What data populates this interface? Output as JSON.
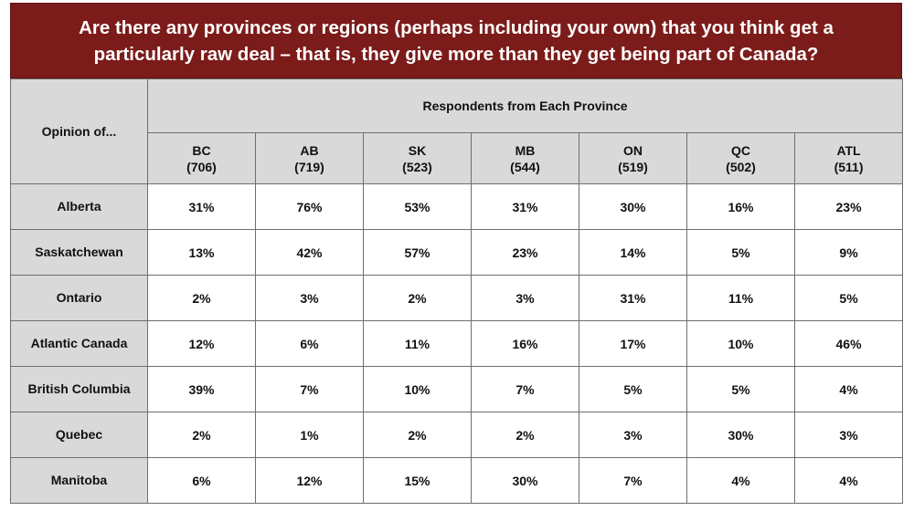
{
  "title": "Are there any provinces or regions (perhaps including your own) that you think get a particularly raw deal – that is, they give more than they get being part of Canada?",
  "table": {
    "corner_label": "Opinion of...",
    "group_header": "Respondents from Each Province",
    "columns": [
      {
        "code": "BC",
        "n": "(706)"
      },
      {
        "code": "AB",
        "n": "(719)"
      },
      {
        "code": "SK",
        "n": "(523)"
      },
      {
        "code": "MB",
        "n": "(544)"
      },
      {
        "code": "ON",
        "n": "(519)"
      },
      {
        "code": "QC",
        "n": "(502)"
      },
      {
        "code": "ATL",
        "n": "(511)"
      }
    ],
    "rows": [
      {
        "label": "Alberta",
        "cells": [
          "31%",
          "76%",
          "53%",
          "31%",
          "30%",
          "16%",
          "23%"
        ]
      },
      {
        "label": "Saskatchewan",
        "cells": [
          "13%",
          "42%",
          "57%",
          "23%",
          "14%",
          "5%",
          "9%"
        ]
      },
      {
        "label": "Ontario",
        "cells": [
          "2%",
          "3%",
          "2%",
          "3%",
          "31%",
          "11%",
          "5%"
        ]
      },
      {
        "label": "Atlantic Canada",
        "cells": [
          "12%",
          "6%",
          "11%",
          "16%",
          "17%",
          "10%",
          "46%"
        ]
      },
      {
        "label": "British Columbia",
        "cells": [
          "39%",
          "7%",
          "10%",
          "7%",
          "5%",
          "5%",
          "4%"
        ]
      },
      {
        "label": "Quebec",
        "cells": [
          "2%",
          "1%",
          "2%",
          "2%",
          "3%",
          "30%",
          "3%"
        ]
      },
      {
        "label": "Manitoba",
        "cells": [
          "6%",
          "12%",
          "15%",
          "30%",
          "7%",
          "4%",
          "4%"
        ]
      }
    ]
  },
  "chart_data": {
    "type": "table",
    "title": "Are there any provinces or regions (perhaps including your own) that you think get a particularly raw deal – that is, they give more than they get being part of Canada?",
    "row_header": "Opinion of...",
    "column_group_header": "Respondents from Each Province",
    "columns": [
      "BC (706)",
      "AB (719)",
      "SK (523)",
      "MB (544)",
      "ON (519)",
      "QC (502)",
      "ATL (511)"
    ],
    "rows": [
      "Alberta",
      "Saskatchewan",
      "Ontario",
      "Atlantic Canada",
      "British Columbia",
      "Quebec",
      "Manitoba"
    ],
    "values": [
      [
        31,
        76,
        53,
        31,
        30,
        16,
        23
      ],
      [
        13,
        42,
        57,
        23,
        14,
        5,
        9
      ],
      [
        2,
        3,
        2,
        3,
        31,
        11,
        5
      ],
      [
        12,
        6,
        11,
        16,
        17,
        10,
        46
      ],
      [
        39,
        7,
        10,
        7,
        5,
        5,
        4
      ],
      [
        2,
        1,
        2,
        2,
        3,
        30,
        3
      ],
      [
        6,
        12,
        15,
        30,
        7,
        4,
        4
      ]
    ],
    "unit": "%"
  }
}
